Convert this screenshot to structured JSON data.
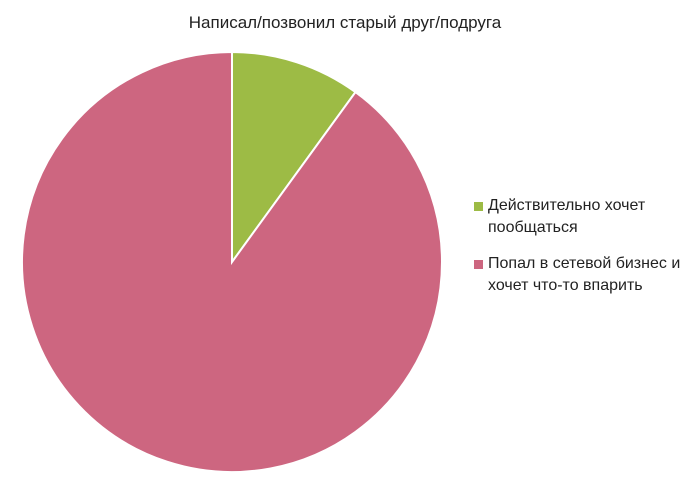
{
  "chart_data": {
    "type": "pie",
    "title": "Написал/позвонил старый друг/подруга",
    "categories": [
      "Действительно хочет пообщаться",
      "Попал в сетевой бизнес и хочет что-то впарить"
    ],
    "values": [
      10,
      90
    ],
    "colors": [
      "#9dbb45",
      "#cd6680"
    ],
    "legend": "right"
  }
}
